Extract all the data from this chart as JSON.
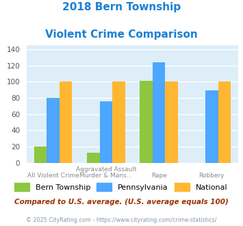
{
  "title_line1": "2018 Bern Township",
  "title_line2": "Violent Crime Comparison",
  "title_color": "#1a7fd4",
  "cat_labels_top": [
    "",
    "Aggravated Assault",
    "",
    ""
  ],
  "cat_labels_bottom": [
    "All Violent Crime",
    "Murder & Mans...",
    "Rape",
    "Robbery"
  ],
  "series": {
    "Bern Township": {
      "color": "#8dc63f",
      "values": [
        20,
        12,
        101,
        null
      ]
    },
    "Pennsylvania": {
      "color": "#4da6ff",
      "values": [
        80,
        76,
        124,
        89
      ]
    },
    "National": {
      "color": "#ffb732",
      "values": [
        100,
        100,
        100,
        100
      ]
    }
  },
  "ylim": [
    0,
    145
  ],
  "yticks": [
    0,
    20,
    40,
    60,
    80,
    100,
    120,
    140
  ],
  "plot_bg_color": "#ddeef8",
  "footer_text": "Compared to U.S. average. (U.S. average equals 100)",
  "footer_color": "#993300",
  "copyright_text": "© 2025 CityRating.com - https://www.cityrating.com/crime-statistics/",
  "copyright_color": "#8899aa",
  "grid_color": "#ffffff",
  "bar_width": 0.24
}
